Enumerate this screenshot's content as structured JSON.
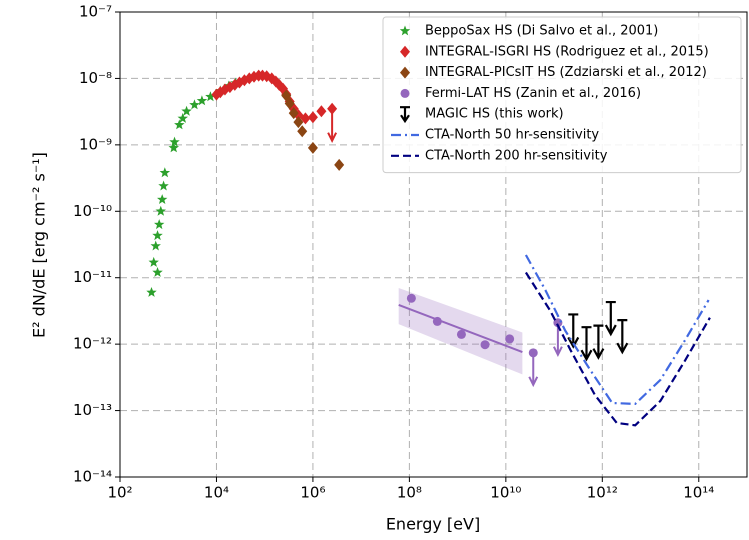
{
  "chart_data": {
    "type": "scatter",
    "x_label": "Energy [eV]",
    "y_label": "E² dN/dE [erg cm⁻² s⁻¹]",
    "log_x": true,
    "log_y": true,
    "grid": true,
    "legend_loc": "upper right",
    "xlim": [
      100,
      1000000000000000.0
    ],
    "ylim": [
      1e-14,
      1e-07
    ],
    "xticks": [
      {
        "value": 100,
        "label": "10²"
      },
      {
        "value": 10000.0,
        "label": "10⁴"
      },
      {
        "value": 1000000.0,
        "label": "10⁶"
      },
      {
        "value": 100000000.0,
        "label": "10⁸"
      },
      {
        "value": 10000000000.0,
        "label": "10¹⁰"
      },
      {
        "value": 1000000000000.0,
        "label": "10¹²"
      },
      {
        "value": 100000000000000.0,
        "label": "10¹⁴"
      }
    ],
    "yticks": [
      {
        "value": 1e-14,
        "label": "10⁻¹⁴"
      },
      {
        "value": 1e-13,
        "label": "10⁻¹³"
      },
      {
        "value": 1e-12,
        "label": "10⁻¹²"
      },
      {
        "value": 1e-11,
        "label": "10⁻¹¹"
      },
      {
        "value": 1e-10,
        "label": "10⁻¹⁰"
      },
      {
        "value": 1e-09,
        "label": "10⁻⁹"
      },
      {
        "value": 1e-08,
        "label": "10⁻⁸"
      },
      {
        "value": 1e-07,
        "label": "10⁻⁷"
      }
    ],
    "series": [
      {
        "name": "BeppoSax HS (Di Salvo et al., 2001)",
        "color": "#2ca02c",
        "marker": "star",
        "x": [
          450,
          500,
          600,
          550,
          600,
          650,
          700,
          750,
          800,
          850,
          1300,
          1350,
          1700,
          2000,
          2400,
          3500,
          5000,
          7500,
          12000,
          18000,
          25000
        ],
        "values": [
          6e-12,
          1.7e-11,
          1.2e-11,
          3e-11,
          4.3e-11,
          6.3e-11,
          1e-10,
          1.5e-10,
          2.4e-10,
          3.8e-10,
          9e-10,
          1.1e-09,
          2e-09,
          2.5e-09,
          3.2e-09,
          4e-09,
          4.6e-09,
          5.3e-09,
          6.5e-09,
          7.7e-09,
          8.5e-09
        ]
      },
      {
        "name": "INTEGRAL-ISGRI HS (Rodriguez et al., 2015)",
        "color": "#d62728",
        "marker": "diamond",
        "x": [
          10000,
          12000,
          15000,
          19000,
          24000,
          30000,
          38000,
          48000,
          60000,
          75000,
          90000,
          110000,
          140000,
          170000,
          200000,
          240000,
          280000,
          330000,
          400000,
          500000,
          700000,
          1000000,
          1500000,
          2500000
        ],
        "values": [
          5.7e-09,
          6.2e-09,
          6.8e-09,
          7.4e-09,
          8e-09,
          8.7e-09,
          9.4e-09,
          1e-08,
          1.06e-08,
          1.1e-08,
          1.1e-08,
          1.08e-08,
          1e-08,
          9e-09,
          8e-09,
          7e-09,
          5.8e-09,
          4.5e-09,
          3.5e-09,
          2.8e-09,
          2.5e-09,
          2.6e-09,
          3.2e-09,
          3.5e-09
        ],
        "upper_limits": [
          false,
          false,
          false,
          false,
          false,
          false,
          false,
          false,
          false,
          false,
          false,
          false,
          false,
          false,
          false,
          false,
          false,
          false,
          false,
          false,
          false,
          false,
          false,
          true
        ]
      },
      {
        "name": "INTEGRAL-PICsIT HS (Zdziarski et al., 2012)",
        "color": "#8b4513",
        "marker": "diamond",
        "x": [
          280000,
          330000,
          400000,
          500000,
          600000,
          1000000,
          3500000
        ],
        "values": [
          5.5e-09,
          4.2e-09,
          3e-09,
          2.2e-09,
          1.6e-09,
          9e-10,
          5e-10
        ]
      },
      {
        "name": "Fermi-LAT HS (Zanin et al., 2016)",
        "color": "#9467bd",
        "marker": "circle",
        "x": [
          110000000.0,
          380000000.0,
          1200000000.0,
          3700000000.0,
          12000000000.0,
          37000000000.0,
          120000000000.0
        ],
        "values": [
          4.9e-12,
          2.2e-12,
          1.4e-12,
          9.8e-13,
          1.2e-12,
          7.4e-13,
          2.1e-12
        ],
        "upper_limits": [
          false,
          false,
          false,
          false,
          false,
          true,
          true
        ],
        "fit_x": [
          60000000.0,
          22000000000.0
        ],
        "fit_values": [
          3.9e-12,
          7.6e-13
        ],
        "fit_lower": [
          2e-12,
          3.5e-13
        ],
        "fit_upper": [
          7e-12,
          1.5e-12
        ]
      },
      {
        "name": "MAGIC HS (this work)",
        "color": "#000000",
        "marker": "arrow",
        "x": [
          250000000000.0,
          470000000000.0,
          830000000000.0,
          1500000000000.0,
          2600000000000.0
        ],
        "values": [
          2.8e-12,
          1.8e-12,
          1.9e-12,
          4.3e-12,
          2.3e-12
        ]
      },
      {
        "name": "CTA-North 50 hr-sensitivity",
        "color": "#4169e1",
        "line_style": "dashdot",
        "x": [
          26000000000.0,
          66000000000.0,
          170000000000.0,
          560000000000.0,
          1600000000000.0,
          4800000000000.0,
          16000000000000.0,
          52000000000000.0,
          160000000000000.0
        ],
        "values": [
          2.2e-11,
          6.5e-12,
          1.6e-12,
          4.1e-13,
          1.3e-13,
          1.26e-13,
          2.9e-13,
          1.15e-12,
          4.6e-12
        ]
      },
      {
        "name": "CTA-North 200 hr-sensitivity",
        "color": "#000080",
        "line_style": "dashed",
        "x": [
          26000000000.0,
          83000000000.0,
          220000000000.0,
          710000000000.0,
          2000000000000.0,
          4800000000000.0,
          16000000000000.0,
          52000000000000.0,
          170000000000000.0
        ],
        "values": [
          1.2e-11,
          3.2e-12,
          8.1e-13,
          1.7e-13,
          6.5e-14,
          6e-14,
          1.4e-13,
          5.7e-13,
          2.5e-12
        ]
      }
    ]
  }
}
